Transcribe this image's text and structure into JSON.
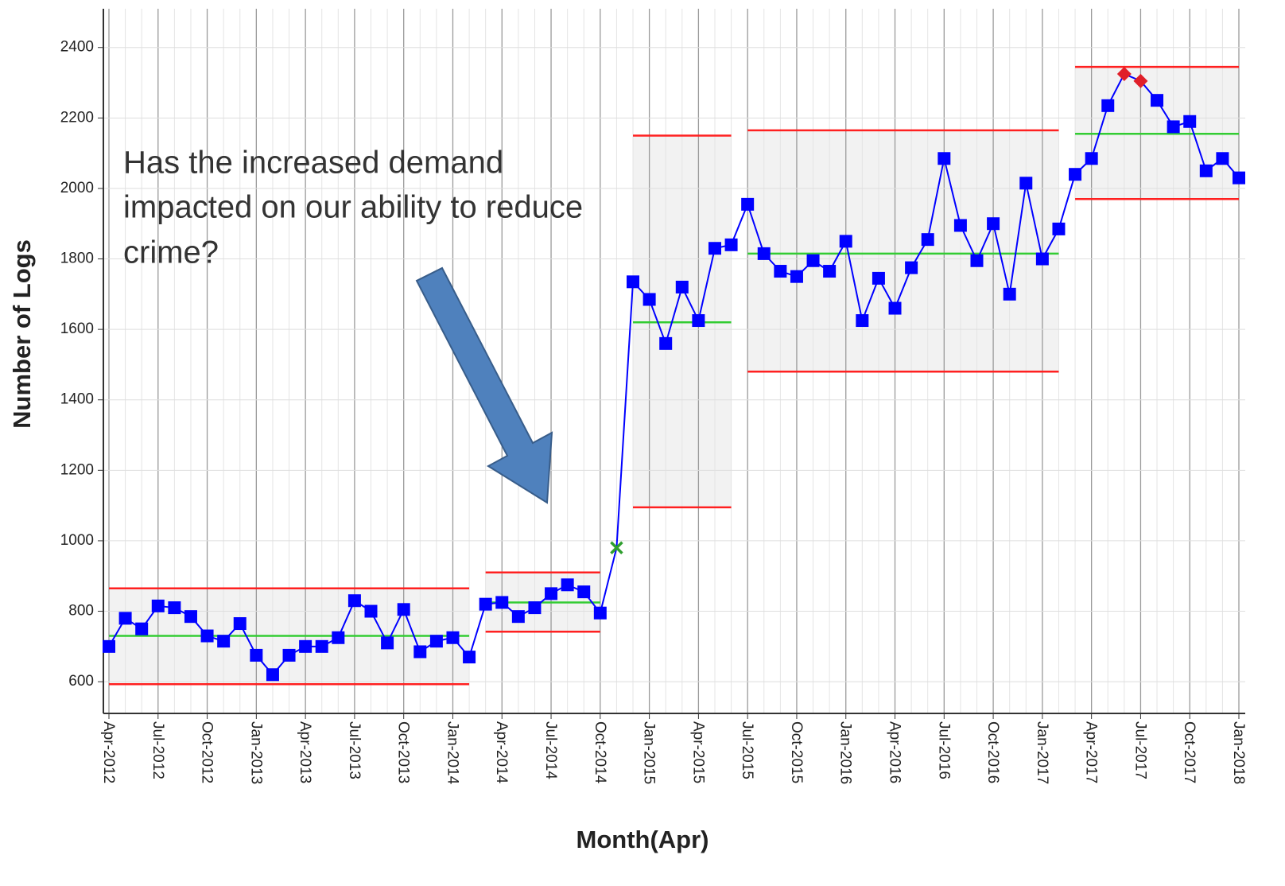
{
  "chart_data": {
    "type": "line",
    "x_label": "Month(Apr)",
    "y_label": "Number of Logs",
    "annotation": [
      "Has the increased demand",
      "impacted on our ability to reduce",
      "crime?"
    ],
    "categories": [
      "Apr-2012",
      null,
      null,
      "Jul-2012",
      null,
      null,
      "Oct-2012",
      null,
      null,
      "Jan-2013",
      null,
      null,
      "Apr-2013",
      null,
      null,
      "Jul-2013",
      null,
      null,
      "Oct-2013",
      null,
      null,
      "Jan-2014",
      null,
      null,
      "Apr-2014",
      null,
      null,
      "Jul-2014",
      null,
      null,
      "Oct-2014",
      null,
      null,
      "Jan-2015",
      null,
      null,
      "Apr-2015",
      null,
      null,
      "Jul-2015",
      null,
      null,
      "Oct-2015",
      null,
      null,
      "Jan-2016",
      null,
      null,
      "Apr-2016",
      null,
      null,
      "Jul-2016",
      null,
      null,
      "Oct-2016",
      null,
      null,
      "Jan-2017",
      null,
      null,
      "Apr-2017",
      null,
      null,
      "Jul-2017",
      null,
      null,
      "Oct-2017",
      null,
      null,
      "Jan-2018"
    ],
    "series": [
      {
        "color": "#0000ff",
        "values": [
          700,
          780,
          750,
          815,
          810,
          785,
          730,
          715,
          765,
          675,
          620,
          675,
          700,
          700,
          725,
          830,
          800,
          710,
          805,
          685,
          715,
          725,
          670,
          820,
          825,
          785,
          810,
          850,
          875,
          855,
          795,
          980,
          1735,
          1685,
          1560,
          1720,
          1625,
          1830,
          1840,
          1955,
          1815,
          1765,
          1750,
          1795,
          1765,
          1850,
          1625,
          1745,
          1660,
          1775,
          1855,
          2085,
          1895,
          1795,
          1900,
          1700,
          2015,
          1800,
          1885,
          2040,
          2085,
          2235,
          2325,
          2305,
          2250,
          2175,
          2190,
          2050,
          2085,
          2030
        ]
      }
    ],
    "phases": [
      {
        "start": 0,
        "end": 22,
        "mean": 730,
        "ucl": 865,
        "lcl": 593
      },
      {
        "start": 23,
        "end": 30,
        "mean": 825,
        "ucl": 910,
        "lcl": 742
      },
      {
        "start": 32,
        "end": 38,
        "mean": 1620,
        "ucl": 2150,
        "lcl": 1095
      },
      {
        "start": 39,
        "end": 58,
        "mean": 1815,
        "ucl": 2165,
        "lcl": 1480
      },
      {
        "start": 59,
        "end": 69,
        "mean": 2155,
        "ucl": 2345,
        "lcl": 1970
      }
    ],
    "shift_points": [
      31
    ],
    "shift_color": "#2e9e2e",
    "outside_points": [
      62,
      63
    ],
    "outside_color": "#e0202a",
    "mean_color": "#33cc33",
    "limit_color": "#ff2020",
    "shade_color": "#f2f2f2",
    "ylim": [
      510,
      2510
    ],
    "yticks": [
      600,
      800,
      1000,
      1200,
      1400,
      1600,
      1800,
      2000,
      2200,
      2400
    ],
    "grid": true
  }
}
